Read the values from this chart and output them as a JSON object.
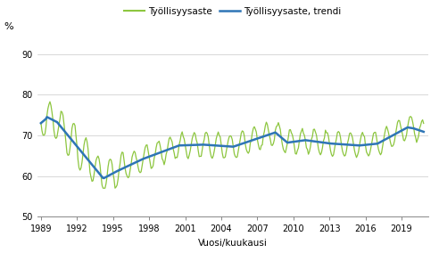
{
  "title": "",
  "ylabel": "%",
  "xlabel": "Vuosi/kuukausi",
  "legend_entries": [
    "Työllisyysaste",
    "Työllisyysaste, trendi"
  ],
  "line_color_raw": "#8dc63f",
  "line_color_trend": "#2e75b6",
  "ylim": [
    50,
    93
  ],
  "yticks": [
    50,
    60,
    70,
    80,
    90
  ],
  "xticks": [
    1989,
    1992,
    1995,
    1998,
    2001,
    2004,
    2007,
    2010,
    2013,
    2016,
    2019
  ],
  "grid_color": "#c8c8c8",
  "background_color": "#ffffff",
  "start_year": 1989,
  "start_month": 1,
  "end_year": 2020,
  "end_month": 11
}
